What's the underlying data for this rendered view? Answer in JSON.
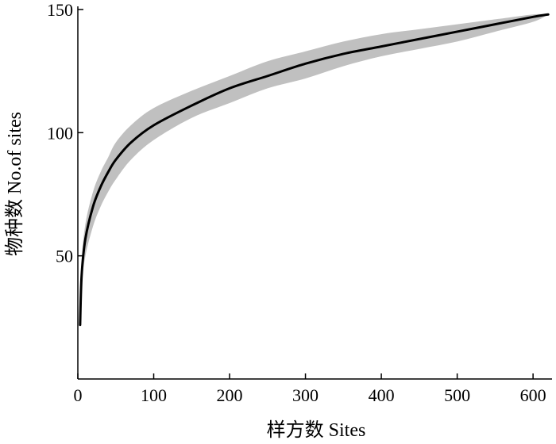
{
  "chart_data": {
    "type": "line",
    "title": "",
    "xlabel": "样方数 Sites",
    "ylabel": "物种数 No.of sites",
    "xlim": [
      0,
      625
    ],
    "ylim": [
      0,
      150
    ],
    "x_ticks": [
      0,
      100,
      200,
      300,
      400,
      500,
      600
    ],
    "y_ticks": [
      50,
      100,
      150
    ],
    "x_tick_labels": [
      "0",
      "100",
      "200",
      "300",
      "400",
      "500",
      "600"
    ],
    "y_tick_labels": [
      "50",
      "100",
      "150"
    ],
    "grid": false,
    "legend": "none",
    "colors": {
      "line": "#000000",
      "band": "#c0c0c0",
      "axis": "#000000"
    },
    "series": [
      {
        "x": [
          3,
          5,
          10,
          20,
          30,
          40,
          50,
          70,
          100,
          150,
          200,
          250,
          300,
          350,
          400,
          450,
          500,
          550,
          600,
          620
        ],
        "values": [
          22,
          42,
          57,
          70,
          78,
          84,
          89,
          96,
          103,
          111,
          118,
          123,
          128,
          132,
          135,
          138,
          141,
          144,
          147,
          148
        ],
        "lower": [
          22,
          38,
          50,
          62,
          70,
          76,
          81,
          89,
          97,
          106,
          112,
          118,
          122,
          127,
          131,
          134,
          137,
          141,
          145,
          148
        ],
        "upper": [
          22,
          47,
          63,
          76,
          84,
          90,
          96,
          103,
          110,
          117,
          123,
          129,
          133,
          137,
          140,
          142,
          144,
          146,
          148,
          148
        ]
      }
    ]
  }
}
